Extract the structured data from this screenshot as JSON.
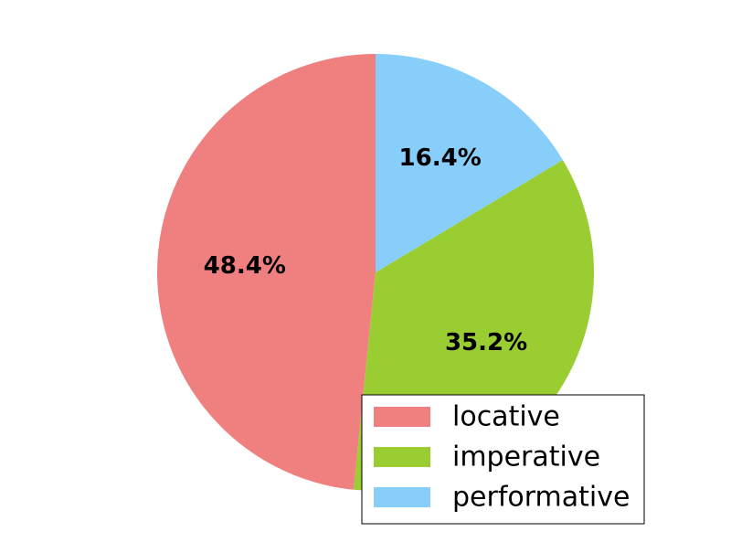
{
  "chart_data": {
    "type": "pie",
    "title": "",
    "slices": [
      {
        "label": "locative",
        "value": 48.4,
        "display": "48.4%",
        "color": "#f08080"
      },
      {
        "label": "imperative",
        "value": 35.2,
        "display": "35.2%",
        "color": "#9acd32"
      },
      {
        "label": "performative",
        "value": 16.4,
        "display": "16.4%",
        "color": "#87cefa"
      }
    ],
    "start_angle_deg": 90,
    "direction": "counterclockwise",
    "legend": {
      "position": "lower-right",
      "entries": [
        "locative",
        "imperative",
        "performative"
      ]
    }
  }
}
